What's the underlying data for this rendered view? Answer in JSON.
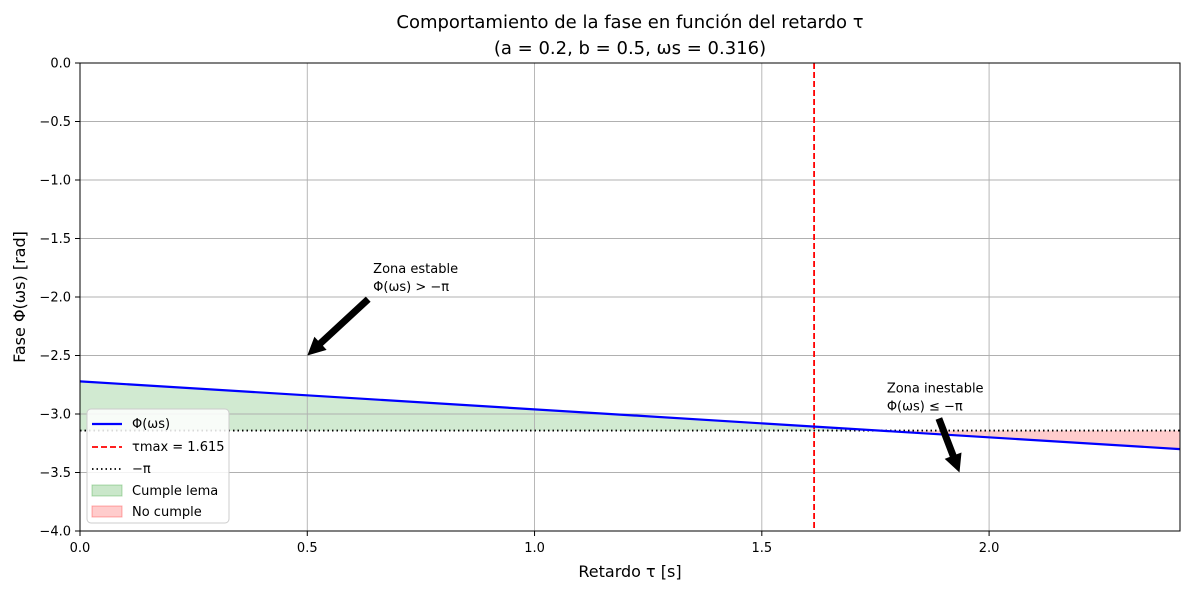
{
  "chart_data": {
    "type": "line",
    "title": "Comportamiento de la fase en función del retardo τ",
    "subtitle": "(a = 0.2, b = 0.5, ωs = 0.316)",
    "xlabel": "Retardo τ [s]",
    "ylabel": "Fase Φ(ωs) [rad]",
    "xlim": [
      0,
      2.42
    ],
    "ylim": [
      -4.0,
      0.0
    ],
    "x_ticks": [
      0.0,
      0.5,
      1.0,
      1.5,
      2.0
    ],
    "x_tick_labels": [
      "0.0",
      "0.5",
      "1.0",
      "1.5",
      "2.0"
    ],
    "y_ticks": [
      0.0,
      -0.5,
      -1.0,
      -1.5,
      -2.0,
      -2.5,
      -3.0,
      -3.5,
      -4.0
    ],
    "y_tick_labels": [
      "0.0",
      "−0.5",
      "−1.0",
      "−1.5",
      "−2.0",
      "−2.5",
      "−3.0",
      "−3.5",
      "−4.0"
    ],
    "grid": true,
    "legend_position": "lower-left",
    "series": [
      {
        "name": "Φ(ωs)",
        "x": [
          0.0,
          2.42
        ],
        "y": [
          -2.721,
          -3.3
        ],
        "color": "#0000ff",
        "style": "solid"
      }
    ],
    "reference_lines": [
      {
        "name": "τmax = 1.615",
        "orientation": "vertical",
        "value": 1.615,
        "color": "#ff0000",
        "style": "dashed"
      },
      {
        "name": "−π",
        "orientation": "horizontal",
        "value": -3.14159,
        "color": "#000000",
        "style": "dotted"
      }
    ],
    "fills": [
      {
        "name": "Cumple lema",
        "color": "#2ca02c",
        "opacity": 0.22
      },
      {
        "name": "No cumple",
        "color": "#ff0000",
        "opacity": 0.2
      }
    ],
    "annotations": [
      {
        "line1": "Zona estable",
        "line2": "Φ(ωs) > −π",
        "text_at": [
          0.645,
          -1.95
        ],
        "arrow_to": [
          0.5,
          -2.5
        ]
      },
      {
        "line1": "Zona inestable",
        "line2": "Φ(ωs) ≤ −π",
        "text_at": [
          1.775,
          -2.97
        ],
        "arrow_to": [
          1.935,
          -3.5
        ]
      }
    ]
  }
}
